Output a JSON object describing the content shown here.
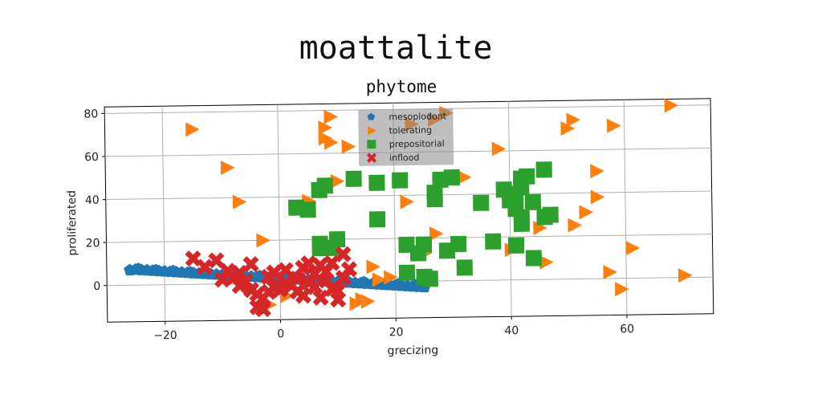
{
  "figure_title": "moattalite",
  "chart_data": {
    "type": "scatter",
    "title": "phytome",
    "xlabel": "grecizing",
    "ylabel": "proliferated",
    "xlim": [
      -30,
      75
    ],
    "ylim": [
      -17,
      83
    ],
    "xticks": [
      -20,
      0,
      20,
      40,
      60
    ],
    "yticks": [
      0,
      20,
      40,
      60,
      80
    ],
    "grid": true,
    "legend_position": "top-center",
    "series": [
      {
        "name": "mesoplodont",
        "marker": "pentagon",
        "color": "#1f77b4",
        "points": [
          [
            -26,
            7
          ],
          [
            -25,
            7.2
          ],
          [
            -24,
            7
          ],
          [
            -23,
            6.8
          ],
          [
            -22,
            6.6
          ],
          [
            -21,
            6.4
          ],
          [
            -20,
            6.2
          ],
          [
            -19,
            6
          ],
          [
            -18,
            5.8
          ],
          [
            -17,
            5.6
          ],
          [
            -16,
            5.4
          ],
          [
            -15,
            5.2
          ],
          [
            -14,
            5
          ],
          [
            -13,
            4.8
          ],
          [
            -12,
            4.6
          ],
          [
            -11,
            4.4
          ],
          [
            -10,
            4.2
          ],
          [
            -9,
            4
          ],
          [
            -8,
            3.8
          ],
          [
            -7,
            3.6
          ],
          [
            -6,
            3.4
          ],
          [
            -5,
            3.2
          ],
          [
            -4,
            3
          ],
          [
            -3,
            2.8
          ],
          [
            -2,
            2.6
          ],
          [
            -1,
            2.4
          ],
          [
            0,
            2.2
          ],
          [
            1,
            2
          ],
          [
            2,
            1.8
          ],
          [
            3,
            1.6
          ],
          [
            4,
            1.4
          ],
          [
            5,
            1.2
          ],
          [
            6,
            1
          ],
          [
            7,
            0.8
          ],
          [
            8,
            0.6
          ],
          [
            9,
            0.4
          ],
          [
            10,
            0.2
          ],
          [
            11,
            0
          ],
          [
            12,
            -0.2
          ],
          [
            13,
            -0.4
          ],
          [
            14,
            -0.6
          ],
          [
            15,
            -0.8
          ],
          [
            16,
            -1
          ],
          [
            17,
            -1.2
          ],
          [
            18,
            -1.4
          ],
          [
            19,
            -1.6
          ],
          [
            20,
            -1.8
          ],
          [
            21,
            -2
          ],
          [
            22,
            -2.2
          ],
          [
            23,
            -2.4
          ],
          [
            24,
            -2.6
          ],
          [
            25,
            -2.8
          ],
          [
            -24.5,
            7.5
          ],
          [
            -21.5,
            6.8
          ],
          [
            -18.5,
            6.3
          ],
          [
            -15.5,
            5.6
          ],
          [
            -12.5,
            5.1
          ],
          [
            -9.5,
            4.6
          ],
          [
            -6.5,
            4
          ],
          [
            -3.5,
            3.4
          ],
          [
            -0.5,
            2.8
          ],
          [
            2.5,
            2.2
          ],
          [
            5.5,
            1.6
          ],
          [
            8.5,
            1
          ],
          [
            11.5,
            0.5
          ],
          [
            14.5,
            -0.1
          ],
          [
            17.5,
            -0.7
          ],
          [
            20.5,
            -1.3
          ],
          [
            23.5,
            -1.9
          ]
        ]
      },
      {
        "name": "tolerating",
        "marker": "triangle-right",
        "color": "#ff7f0e",
        "points": [
          [
            -15,
            72
          ],
          [
            -9,
            54
          ],
          [
            -7,
            38
          ],
          [
            -3,
            20
          ],
          [
            9,
            77
          ],
          [
            8,
            72
          ],
          [
            8,
            67
          ],
          [
            9,
            65
          ],
          [
            12,
            63
          ],
          [
            10,
            47
          ],
          [
            5,
            38
          ],
          [
            22,
            37
          ],
          [
            23,
            73
          ],
          [
            27,
            75
          ],
          [
            29,
            78
          ],
          [
            38,
            61
          ],
          [
            32,
            48
          ],
          [
            27,
            22
          ],
          [
            25,
            13
          ],
          [
            16,
            7
          ],
          [
            19,
            2
          ],
          [
            17,
            1
          ],
          [
            14,
            -8
          ],
          [
            15,
            -9
          ],
          [
            13,
            -10
          ],
          [
            40,
            14
          ],
          [
            45,
            24
          ],
          [
            46,
            8
          ],
          [
            50,
            70
          ],
          [
            51,
            74
          ],
          [
            58,
            71
          ],
          [
            68,
            80
          ],
          [
            55,
            50
          ],
          [
            55,
            38
          ],
          [
            53,
            31
          ],
          [
            51,
            25
          ],
          [
            61,
            14
          ],
          [
            57,
            3
          ],
          [
            59,
            -5
          ],
          [
            70,
            1
          ],
          [
            1,
            -6
          ],
          [
            -2,
            -10
          ]
        ]
      },
      {
        "name": "prepositorial",
        "marker": "square",
        "color": "#2ca02c",
        "points": [
          [
            13,
            48
          ],
          [
            17,
            46
          ],
          [
            21,
            47
          ],
          [
            28,
            47
          ],
          [
            30,
            48
          ],
          [
            27,
            41
          ],
          [
            27,
            38
          ],
          [
            3,
            35
          ],
          [
            5,
            34
          ],
          [
            7,
            43
          ],
          [
            8,
            45
          ],
          [
            17,
            29
          ],
          [
            7,
            18
          ],
          [
            7,
            16
          ],
          [
            10,
            20
          ],
          [
            9,
            16
          ],
          [
            22,
            17
          ],
          [
            25,
            17
          ],
          [
            24,
            13
          ],
          [
            29,
            14
          ],
          [
            31,
            17
          ],
          [
            32,
            6
          ],
          [
            22,
            4
          ],
          [
            25,
            2
          ],
          [
            26,
            1
          ],
          [
            35,
            36
          ],
          [
            37,
            18
          ],
          [
            41,
            40
          ],
          [
            42,
            43
          ],
          [
            42,
            47
          ],
          [
            43,
            48
          ],
          [
            39,
            42
          ],
          [
            40,
            37
          ],
          [
            41,
            33
          ],
          [
            42,
            29
          ],
          [
            42,
            26
          ],
          [
            44,
            36
          ],
          [
            46,
            51
          ],
          [
            46,
            29
          ],
          [
            47,
            30
          ],
          [
            44,
            10
          ],
          [
            41,
            16
          ]
        ]
      },
      {
        "name": "inflood",
        "marker": "x",
        "color": "#d62728",
        "points": [
          [
            -15,
            12
          ],
          [
            -13,
            8
          ],
          [
            -11,
            11
          ],
          [
            -10,
            2
          ],
          [
            -9,
            6
          ],
          [
            -8,
            3
          ],
          [
            -7,
            -1
          ],
          [
            -6,
            1
          ],
          [
            -5,
            9
          ],
          [
            -5,
            -3
          ],
          [
            -4,
            -5
          ],
          [
            -4,
            -11
          ],
          [
            -3,
            -7
          ],
          [
            -2,
            3
          ],
          [
            -2,
            -4
          ],
          [
            -1,
            -2
          ],
          [
            -1,
            5
          ],
          [
            0,
            -3
          ],
          [
            1,
            0
          ],
          [
            1,
            6
          ],
          [
            2,
            -1
          ],
          [
            3,
            2
          ],
          [
            3,
            -4
          ],
          [
            4,
            7
          ],
          [
            4,
            -6
          ],
          [
            5,
            9
          ],
          [
            5,
            0
          ],
          [
            6,
            4
          ],
          [
            6,
            -2
          ],
          [
            7,
            8
          ],
          [
            7,
            -7
          ],
          [
            8,
            1
          ],
          [
            8,
            5
          ],
          [
            9,
            -3
          ],
          [
            9,
            9
          ],
          [
            10,
            -4
          ],
          [
            10,
            -8
          ],
          [
            11,
            2
          ],
          [
            11,
            13
          ],
          [
            12,
            6
          ],
          [
            -7,
            5
          ],
          [
            -3,
            -12
          ]
        ]
      }
    ]
  }
}
